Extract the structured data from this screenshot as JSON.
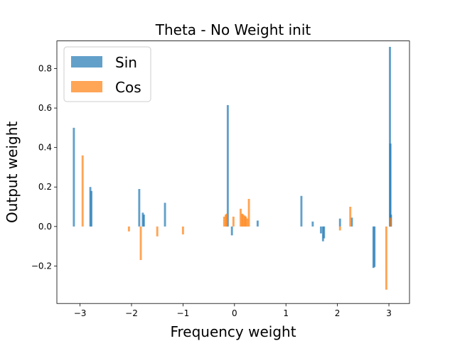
{
  "chart_data": {
    "type": "bar",
    "title": "Theta - No Weight init",
    "xlabel": "Frequency weight",
    "ylabel": "Output weight",
    "xlim": [
      -3.45,
      3.4
    ],
    "ylim": [
      -0.39,
      0.94
    ],
    "xticks": [
      -3,
      -2,
      -1,
      0,
      1,
      2,
      3
    ],
    "xtick_labels": [
      "−3",
      "−2",
      "−1",
      "0",
      "1",
      "2",
      "3"
    ],
    "yticks": [
      -0.2,
      0.0,
      0.2,
      0.4,
      0.6,
      0.8
    ],
    "ytick_labels": [
      "−0.2",
      "0.0",
      "0.2",
      "0.4",
      "0.6",
      "0.8"
    ],
    "grid": false,
    "legend_position": "top-left",
    "bar_width": 0.04,
    "series": [
      {
        "name": "Sin",
        "color": "#1f77b4",
        "opacity": 0.7,
        "x": [
          -3.12,
          -2.8,
          -2.78,
          -1.85,
          -1.78,
          -1.76,
          -1.35,
          -0.13,
          -0.05,
          0.45,
          1.3,
          1.52,
          1.68,
          1.72,
          1.74,
          2.05,
          2.28,
          2.7,
          2.72,
          3.02,
          3.03,
          3.04
        ],
        "values": [
          0.5,
          0.2,
          0.18,
          0.19,
          0.07,
          0.06,
          0.12,
          0.615,
          -0.045,
          0.03,
          0.155,
          0.025,
          -0.035,
          -0.075,
          -0.06,
          0.04,
          0.045,
          -0.21,
          -0.205,
          0.91,
          0.42,
          0.06
        ]
      },
      {
        "name": "Cos",
        "color": "#ff7f0e",
        "opacity": 0.7,
        "x": [
          -2.95,
          -2.05,
          -1.82,
          -1.5,
          -1.0,
          -0.2,
          -0.17,
          -0.15,
          -0.02,
          0.12,
          0.15,
          0.17,
          0.2,
          0.22,
          0.25,
          0.28,
          2.05,
          2.25,
          2.95,
          3.03
        ],
        "values": [
          0.36,
          -0.025,
          -0.17,
          -0.05,
          -0.04,
          0.05,
          0.06,
          0.065,
          0.05,
          0.09,
          0.065,
          0.06,
          0.055,
          0.05,
          0.04,
          0.14,
          -0.02,
          0.1,
          -0.32,
          0.045
        ]
      }
    ]
  }
}
